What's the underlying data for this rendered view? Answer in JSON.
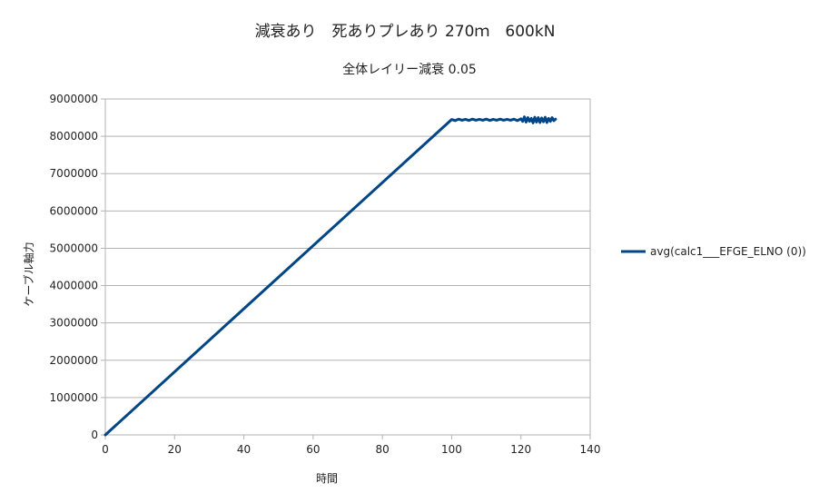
{
  "chart_data": {
    "type": "line",
    "title": "減衰あり　死ありプレあり 270ｍ　600kN",
    "subtitle": "全体レイリー減衰 0.05",
    "xlabel": "時間",
    "ylabel": "ケーブル軸力",
    "xlim": [
      0,
      140
    ],
    "ylim": [
      0,
      9000000
    ],
    "xticks": [
      0,
      20,
      40,
      60,
      80,
      100,
      120,
      140
    ],
    "yticks": [
      0,
      1000000,
      2000000,
      3000000,
      4000000,
      5000000,
      6000000,
      7000000,
      8000000,
      9000000
    ],
    "grid": true,
    "legend_position": "right",
    "series": [
      {
        "name": "avg(calc1___EFGE_ELNO (0))",
        "color": "#004586",
        "x": [
          0,
          100,
          101,
          102,
          103,
          104,
          105,
          106,
          107,
          108,
          109,
          110,
          111,
          112,
          113,
          114,
          115,
          116,
          117,
          118,
          119,
          120,
          120.5,
          121,
          121.5,
          122,
          122.5,
          123,
          123.5,
          124,
          124.5,
          125,
          125.5,
          126,
          126.5,
          127,
          127.5,
          128,
          128.5,
          129,
          129.5,
          130
        ],
        "values": [
          0,
          8450000,
          8420000,
          8460000,
          8430000,
          8455000,
          8425000,
          8460000,
          8430000,
          8455000,
          8430000,
          8460000,
          8425000,
          8455000,
          8430000,
          8460000,
          8430000,
          8455000,
          8430000,
          8460000,
          8420000,
          8470000,
          8400000,
          8520000,
          8380000,
          8500000,
          8400000,
          8480000,
          8360000,
          8510000,
          8380000,
          8500000,
          8370000,
          8490000,
          8390000,
          8510000,
          8370000,
          8480000,
          8400000,
          8500000,
          8420000,
          8460000
        ]
      }
    ]
  }
}
